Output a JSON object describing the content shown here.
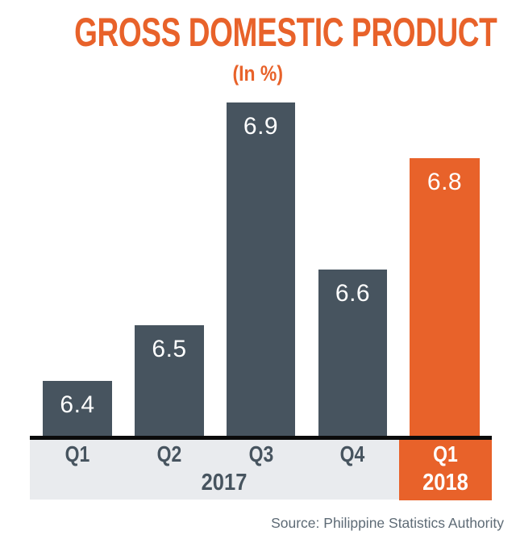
{
  "header": {
    "title": "GROSS DOMESTIC PRODUCT",
    "subtitle": "(In %)"
  },
  "footer": {
    "source": "Source: Philippine Statistics Authority"
  },
  "colors": {
    "accent_orange": "#E8622A",
    "bar_slate": "#47545F",
    "band_gray": "#E9EBEE",
    "axis_line_black": "#0B0B0B",
    "source_text_gray": "#5E6B76",
    "value_text_white": "#FFFFFF"
  },
  "chart_data": {
    "type": "bar",
    "title": "GROSS DOMESTIC PRODUCT",
    "subtitle": "(In %)",
    "unit": "percent",
    "categories": [
      "Q1",
      "Q2",
      "Q3",
      "Q4",
      "Q1"
    ],
    "category_years": [
      "2017",
      "2017",
      "2017",
      "2017",
      "2018"
    ],
    "values": [
      6.4,
      6.5,
      6.9,
      6.6,
      6.8
    ],
    "value_labels": [
      "6.4",
      "6.5",
      "6.9",
      "6.6",
      "6.8"
    ],
    "group_labels": [
      {
        "label": "2017",
        "categories": [
          "Q1",
          "Q2",
          "Q3",
          "Q4"
        ]
      },
      {
        "label": "2018",
        "categories": [
          "Q1"
        ]
      }
    ],
    "highlight_index": 4,
    "bar_colors": [
      "#47545F",
      "#47545F",
      "#47545F",
      "#47545F",
      "#E8622A"
    ],
    "y_base": 6.3,
    "gridlines": false,
    "legend": "none",
    "value_labels_position": "inside-top",
    "source": "Source: Philippine Statistics Authority"
  }
}
